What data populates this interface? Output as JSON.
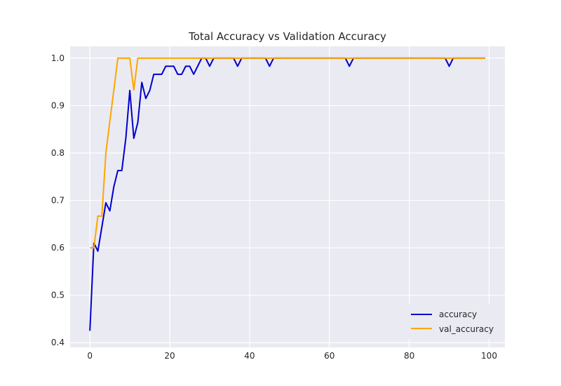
{
  "chart_data": {
    "type": "line",
    "title": "Total Accuracy vs Validation Accuracy",
    "xlabel": "",
    "ylabel": "",
    "xlim": [
      -4.95,
      103.95
    ],
    "ylim": [
      0.39,
      1.025
    ],
    "xticks": [
      0,
      20,
      40,
      60,
      80,
      100
    ],
    "yticks": [
      0.4,
      0.5,
      0.6,
      0.7,
      0.8,
      0.9,
      1.0
    ],
    "xtick_labels": [
      "0",
      "20",
      "40",
      "60",
      "80",
      "100"
    ],
    "ytick_labels": [
      "0.4",
      "0.5",
      "0.6",
      "0.7",
      "0.8",
      "0.9",
      "1.0"
    ],
    "grid": true,
    "legend": "lower-right",
    "series": [
      {
        "name": "accuracy",
        "color": "#0000cd",
        "x": [
          0,
          1,
          2,
          3,
          4,
          5,
          6,
          7,
          8,
          9,
          10,
          11,
          12,
          13,
          14,
          15,
          16,
          17,
          18,
          19,
          20,
          21,
          22,
          23,
          24,
          25,
          26,
          27,
          28,
          29,
          30,
          31,
          32,
          33,
          34,
          35,
          36,
          37,
          38,
          39,
          40,
          41,
          42,
          43,
          44,
          45,
          46,
          47,
          48,
          49,
          50,
          51,
          52,
          53,
          54,
          55,
          56,
          57,
          58,
          59,
          60,
          61,
          62,
          63,
          64,
          65,
          66,
          67,
          68,
          69,
          70,
          71,
          72,
          73,
          74,
          75,
          76,
          77,
          78,
          79,
          80,
          81,
          82,
          83,
          84,
          85,
          86,
          87,
          88,
          89,
          90,
          91,
          92,
          93,
          94,
          95,
          96,
          97,
          98,
          99
        ],
        "y": [
          0.425,
          0.61,
          0.593,
          0.644,
          0.695,
          0.678,
          0.729,
          0.763,
          0.763,
          0.831,
          0.932,
          0.831,
          0.864,
          0.949,
          0.915,
          0.932,
          0.966,
          0.966,
          0.966,
          0.983,
          0.983,
          0.983,
          0.966,
          0.966,
          0.983,
          0.983,
          0.966,
          0.983,
          1.0,
          1.0,
          0.983,
          1.0,
          1.0,
          1.0,
          1.0,
          1.0,
          1.0,
          0.983,
          1.0,
          1.0,
          1.0,
          1.0,
          1.0,
          1.0,
          1.0,
          0.983,
          1.0,
          1.0,
          1.0,
          1.0,
          1.0,
          1.0,
          1.0,
          1.0,
          1.0,
          1.0,
          1.0,
          1.0,
          1.0,
          1.0,
          1.0,
          1.0,
          1.0,
          1.0,
          1.0,
          0.983,
          1.0,
          1.0,
          1.0,
          1.0,
          1.0,
          1.0,
          1.0,
          1.0,
          1.0,
          1.0,
          1.0,
          1.0,
          1.0,
          1.0,
          1.0,
          1.0,
          1.0,
          1.0,
          1.0,
          1.0,
          1.0,
          1.0,
          1.0,
          1.0,
          0.983,
          1.0,
          1.0,
          1.0,
          1.0,
          1.0,
          1.0,
          1.0,
          1.0,
          1.0
        ]
      },
      {
        "name": "val_accuracy",
        "color": "#ffa500",
        "x": [
          0,
          1,
          2,
          3,
          4,
          5,
          6,
          7,
          8,
          9,
          10,
          11,
          12,
          13,
          14,
          15,
          16,
          17,
          18,
          19,
          20,
          21,
          22,
          23,
          24,
          25,
          26,
          27,
          28,
          29,
          30,
          31,
          32,
          33,
          34,
          35,
          36,
          37,
          38,
          39,
          40,
          41,
          42,
          43,
          44,
          45,
          46,
          47,
          48,
          49,
          50,
          51,
          52,
          53,
          54,
          55,
          56,
          57,
          58,
          59,
          60,
          61,
          62,
          63,
          64,
          65,
          66,
          67,
          68,
          69,
          70,
          71,
          72,
          73,
          74,
          75,
          76,
          77,
          78,
          79,
          80,
          81,
          82,
          83,
          84,
          85,
          86,
          87,
          88,
          89,
          90,
          91,
          92,
          93,
          94,
          95,
          96,
          97,
          98,
          99
        ],
        "y": [
          0.6,
          0.6,
          0.667,
          0.667,
          0.8,
          0.867,
          0.933,
          1.0,
          1.0,
          1.0,
          1.0,
          0.933,
          1.0,
          1.0,
          1.0,
          1.0,
          1.0,
          1.0,
          1.0,
          1.0,
          1.0,
          1.0,
          1.0,
          1.0,
          1.0,
          1.0,
          1.0,
          1.0,
          1.0,
          1.0,
          1.0,
          1.0,
          1.0,
          1.0,
          1.0,
          1.0,
          1.0,
          1.0,
          1.0,
          1.0,
          1.0,
          1.0,
          1.0,
          1.0,
          1.0,
          1.0,
          1.0,
          1.0,
          1.0,
          1.0,
          1.0,
          1.0,
          1.0,
          1.0,
          1.0,
          1.0,
          1.0,
          1.0,
          1.0,
          1.0,
          1.0,
          1.0,
          1.0,
          1.0,
          1.0,
          1.0,
          1.0,
          1.0,
          1.0,
          1.0,
          1.0,
          1.0,
          1.0,
          1.0,
          1.0,
          1.0,
          1.0,
          1.0,
          1.0,
          1.0,
          1.0,
          1.0,
          1.0,
          1.0,
          1.0,
          1.0,
          1.0,
          1.0,
          1.0,
          1.0,
          1.0,
          1.0,
          1.0,
          1.0,
          1.0,
          1.0,
          1.0,
          1.0,
          1.0,
          1.0
        ]
      }
    ]
  }
}
